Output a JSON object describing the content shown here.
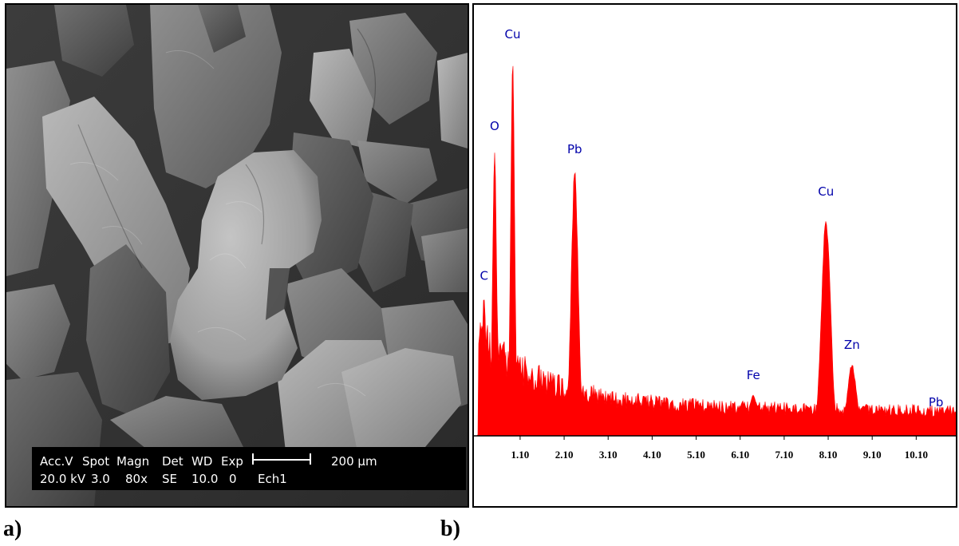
{
  "panels": {
    "a_label": "a)",
    "b_label": "b)"
  },
  "sem": {
    "databar": {
      "header": [
        "Acc.V",
        "Spot",
        "Magn",
        "Det",
        "WD",
        "Exp"
      ],
      "values": [
        "20.0 kV",
        "3.0",
        "80x",
        "SE",
        "10.0",
        "0"
      ],
      "scale_label": "200 µm",
      "sample": "Ech1"
    }
  },
  "chart_data": {
    "type": "area",
    "title": "",
    "xlabel": "",
    "ylabel": "",
    "x_ticks": [
      "1.10",
      "2.10",
      "3.10",
      "4.10",
      "5.10",
      "6.10",
      "7.10",
      "8.10",
      "9.10",
      "10.10"
    ],
    "x_tick_values": [
      1.1,
      2.1,
      3.1,
      4.1,
      5.1,
      6.1,
      7.1,
      8.1,
      9.1,
      10.1
    ],
    "xlim": [
      0.05,
      11.0
    ],
    "ylim": [
      0,
      100
    ],
    "color": "#ff0000",
    "peaks": [
      {
        "label": "C",
        "energy": 0.28,
        "intensity": 37
      },
      {
        "label": "O",
        "energy": 0.52,
        "intensity": 76
      },
      {
        "label": "Cu",
        "energy": 0.93,
        "intensity": 100
      },
      {
        "label": "Pb",
        "energy": 2.34,
        "intensity": 70
      },
      {
        "label": "Fe",
        "energy": 6.4,
        "intensity": 11
      },
      {
        "label": "Cu",
        "energy": 8.05,
        "intensity": 59
      },
      {
        "label": "Zn",
        "energy": 8.64,
        "intensity": 19
      },
      {
        "label": "Pb",
        "energy": 10.55,
        "intensity": 4
      }
    ],
    "minor_peaks": [
      {
        "energy": 8.9,
        "intensity": 8
      }
    ]
  }
}
